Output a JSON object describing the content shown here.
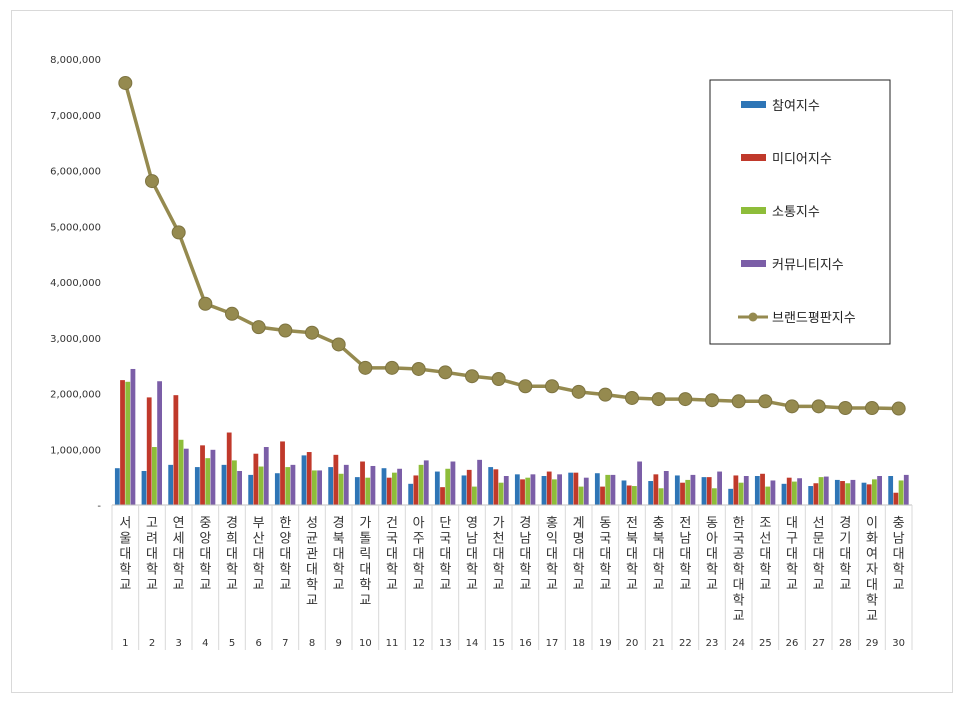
{
  "chart_data": {
    "type": "bar",
    "title": "",
    "xlabel": "",
    "ylabel": "",
    "ylim": [
      0,
      8000000
    ],
    "yticks": [
      {
        "value": 0,
        "label": "-"
      },
      {
        "value": 1000000,
        "label": "1,000,000"
      },
      {
        "value": 2000000,
        "label": "2,000,000"
      },
      {
        "value": 3000000,
        "label": "3,000,000"
      },
      {
        "value": 4000000,
        "label": "4,000,000"
      },
      {
        "value": 5000000,
        "label": "5,000,000"
      },
      {
        "value": 6000000,
        "label": "6,000,000"
      },
      {
        "value": 7000000,
        "label": "7,000,000"
      },
      {
        "value": 8000000,
        "label": "8,000,000"
      }
    ],
    "grid": false,
    "legend_position": "top-right",
    "categories": [
      "서울대학교",
      "고려대학교",
      "연세대학교",
      "중앙대학교",
      "경희대학교",
      "부산대학교",
      "한양대학교",
      "성균관대학교",
      "경북대학교",
      "가톨릭대학교",
      "건국대학교",
      "아주대학교",
      "단국대학교",
      "영남대학교",
      "가천대학교",
      "경남대학교",
      "홍익대학교",
      "계명대학교",
      "동국대학교",
      "전북대학교",
      "충북대학교",
      "전남대학교",
      "동아대학교",
      "한국공학대학교",
      "조선대학교",
      "대구대학교",
      "선문대학교",
      "경기대학교",
      "이화여자대학교",
      "충남대학교"
    ],
    "ranks": [
      "1",
      "2",
      "3",
      "4",
      "5",
      "6",
      "7",
      "8",
      "9",
      "10",
      "11",
      "12",
      "13",
      "14",
      "15",
      "16",
      "17",
      "18",
      "19",
      "20",
      "21",
      "22",
      "23",
      "24",
      "25",
      "26",
      "27",
      "28",
      "29",
      "30"
    ],
    "series": [
      {
        "name": "참여지수",
        "type": "bar",
        "color": "#2e75b6",
        "values": [
          660000,
          610000,
          720000,
          680000,
          720000,
          540000,
          570000,
          890000,
          680000,
          500000,
          660000,
          380000,
          600000,
          530000,
          680000,
          550000,
          520000,
          580000,
          570000,
          440000,
          430000,
          530000,
          500000,
          290000,
          520000,
          380000,
          340000,
          450000,
          400000,
          520000
        ]
      },
      {
        "name": "미디어지수",
        "type": "bar",
        "color": "#c0392b",
        "values": [
          2240000,
          1930000,
          1970000,
          1070000,
          1300000,
          920000,
          1140000,
          950000,
          900000,
          780000,
          490000,
          530000,
          320000,
          630000,
          640000,
          460000,
          600000,
          580000,
          330000,
          350000,
          550000,
          400000,
          500000,
          530000,
          560000,
          490000,
          390000,
          430000,
          370000,
          220000
        ]
      },
      {
        "name": "소통지수",
        "type": "bar",
        "color": "#8ebd3a",
        "values": [
          2210000,
          1040000,
          1170000,
          840000,
          800000,
          690000,
          680000,
          620000,
          560000,
          490000,
          580000,
          720000,
          650000,
          330000,
          400000,
          490000,
          460000,
          330000,
          540000,
          340000,
          300000,
          450000,
          300000,
          400000,
          330000,
          420000,
          500000,
          390000,
          460000,
          440000
        ]
      },
      {
        "name": "커뮤니티지수",
        "type": "bar",
        "color": "#7b5ea7",
        "values": [
          2440000,
          2220000,
          1010000,
          990000,
          610000,
          1040000,
          720000,
          620000,
          720000,
          700000,
          650000,
          800000,
          780000,
          810000,
          520000,
          550000,
          550000,
          490000,
          540000,
          780000,
          610000,
          540000,
          600000,
          520000,
          440000,
          480000,
          510000,
          450000,
          520000,
          540000
        ]
      },
      {
        "name": "브랜드평판지수",
        "type": "line",
        "color": "#958a4f",
        "values": [
          7570000,
          5810000,
          4890000,
          3610000,
          3430000,
          3190000,
          3130000,
          3090000,
          2880000,
          2460000,
          2460000,
          2440000,
          2380000,
          2310000,
          2260000,
          2130000,
          2130000,
          2030000,
          1980000,
          1920000,
          1900000,
          1900000,
          1880000,
          1860000,
          1860000,
          1770000,
          1770000,
          1740000,
          1740000,
          1730000
        ]
      }
    ]
  }
}
